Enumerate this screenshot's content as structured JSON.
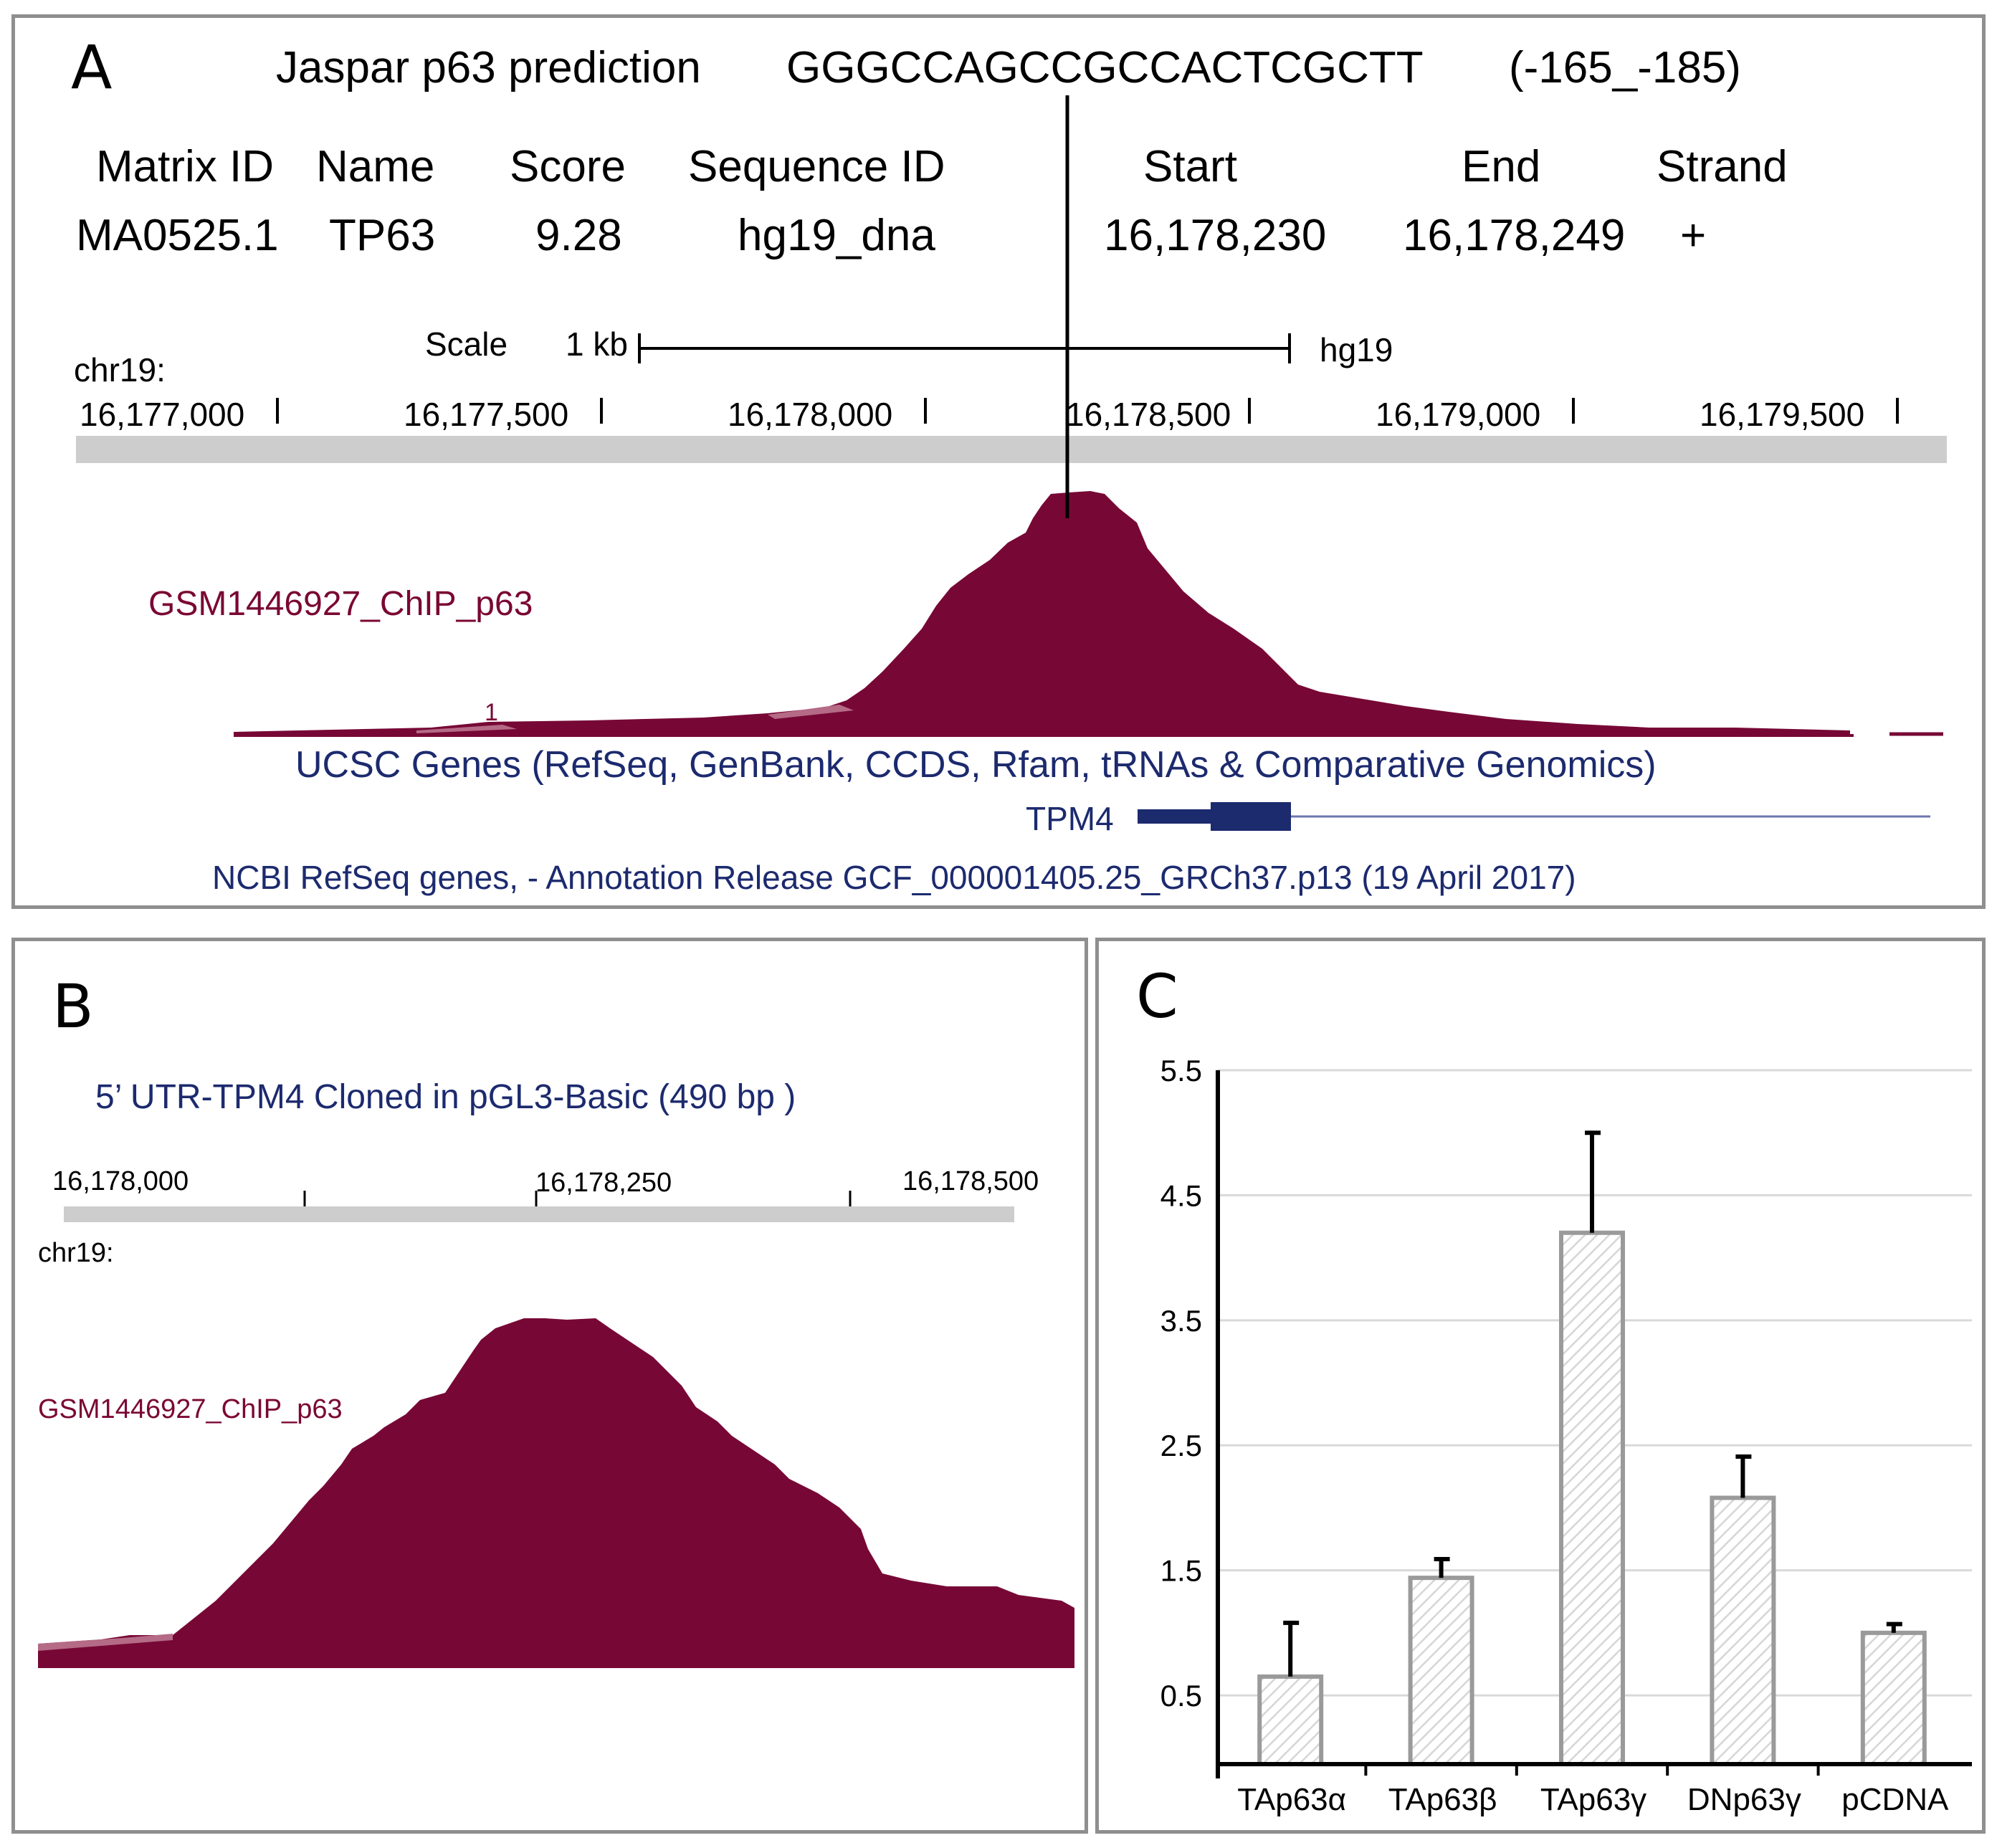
{
  "panel_a": {
    "label": "A",
    "header_title": "Jaspar p63 prediction",
    "sequence": "GGGCCAGCCGCCACTCGCTT",
    "sequence_range": "(-165_-185)",
    "table": {
      "columns": [
        "Matrix ID",
        "Name",
        "Score",
        "Sequence ID",
        "Start",
        "End",
        "Strand"
      ],
      "row": [
        "MA0525.1",
        "TP63",
        "9.28",
        "hg19_dna",
        "16,178,230",
        "16,178,249",
        "+"
      ]
    },
    "scale_label": "Scale",
    "scale_value": "1 kb",
    "assembly": "hg19",
    "chrom": "chr19:",
    "positions": [
      "16,177,000",
      "16,177,500",
      "16,178,000",
      "16,178,500",
      "16,179,000",
      "16,179,500"
    ],
    "track_name": "GSM1446927_ChIP_p63",
    "track_tick": "1",
    "genes_track_title": "UCSC Genes (RefSeq, GenBank, CCDS, Rfam, tRNAs & Comparative Genomics)",
    "gene_name": "TPM4",
    "refseq_title": "NCBI RefSeq genes, - Annotation Release GCF_000001405.25_GRCh37.p13 (19 April 2017)"
  },
  "panel_b": {
    "label": "B",
    "title": "5’ UTR-TPM4 Cloned in pGL3-Basic (490 bp )",
    "positions": [
      "16,178,000",
      "16,178,250",
      "16,178,500"
    ],
    "chrom": "chr19:",
    "track_name": "GSM1446927_ChIP_p63"
  },
  "panel_c": {
    "label": "C"
  },
  "colors": {
    "chip_signal": "#770836",
    "chip_signal_light": "#b56a86",
    "navy": "#1c2a6e",
    "panel_border": "#8f8f8f",
    "ruler_gray": "#cdcdcd",
    "bar_outline": "#9a9a9a",
    "bar_hatch": "#dcdcdc"
  },
  "chart_data": {
    "type": "bar",
    "title": "",
    "xlabel": "",
    "ylabel": "",
    "categories": [
      "TAp63α",
      "TAp63β",
      "TAp63γ",
      "DNp63γ",
      "pCDNA"
    ],
    "values": [
      0.65,
      1.44,
      4.2,
      2.08,
      1.0
    ],
    "errors": [
      0.43,
      0.15,
      0.8,
      0.33,
      0.07
    ],
    "yticks": [
      "0.5",
      "1.5",
      "2.5",
      "3.5",
      "4.5",
      "5.5"
    ],
    "ytick_values": [
      0.5,
      1.5,
      2.5,
      3.5,
      4.5,
      5.5
    ],
    "ylim": [
      -0.05,
      5.5
    ],
    "grid": true
  }
}
